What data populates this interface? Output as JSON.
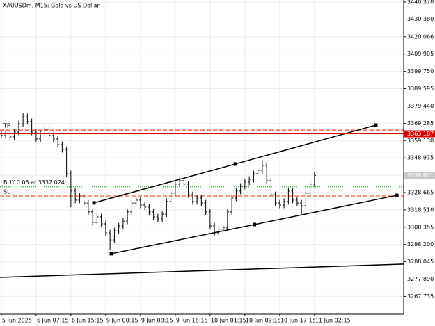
{
  "chart_data": {
    "type": "ohlc",
    "title": "XAUUSDm, M15:  Gold vs US Dollar",
    "open": [
      3363.0,
      3362.1,
      3363.3,
      3361.3,
      3364.1,
      3369.0,
      3373.1,
      3370.3,
      3364.1,
      3360.1,
      3363.3,
      3365.8,
      3362.1,
      3360.1,
      3356.8,
      3353.9,
      3339.7,
      3329.5,
      3324.2,
      3326.6,
      3322.5,
      3317.3,
      3311.1,
      3314.4,
      3310.3,
      3305.0,
      3300.9,
      3306.2,
      3309.1,
      3311.9,
      3317.3,
      3322.5,
      3324.2,
      3321.3,
      3320.1,
      3317.3,
      3314.4,
      3313.2,
      3316.0,
      3323.4,
      3328.3,
      3333.6,
      3335.6,
      3333.6,
      3327.4,
      3323.4,
      3325.4,
      3322.5,
      3317.3,
      3309.1,
      3305.0,
      3307.1,
      3307.9,
      3317.3,
      3325.4,
      3329.5,
      3332.3,
      3334.8,
      3336.4,
      3339.7,
      3341.7,
      3344.6,
      3335.6,
      3327.4,
      3322.5,
      3321.3,
      3323.4,
      3329.5,
      3324.2,
      3322.5,
      3320.9,
      3328.3,
      3333.6
    ],
    "high": [
      3364.8,
      3365.1,
      3365.1,
      3365.9,
      3370.8,
      3375.5,
      3374.9,
      3372.1,
      3365.9,
      3365.1,
      3367.6,
      3367.6,
      3363.9,
      3361.9,
      3358.6,
      3355.7,
      3341.5,
      3331.3,
      3328.4,
      3328.4,
      3324.3,
      3319.1,
      3316.2,
      3316.2,
      3312.1,
      3306.8,
      3308.0,
      3310.9,
      3313.7,
      3319.1,
      3324.3,
      3326.0,
      3326.0,
      3323.1,
      3321.9,
      3319.1,
      3316.2,
      3317.8,
      3325.2,
      3330.1,
      3335.4,
      3337.4,
      3337.4,
      3335.4,
      3329.2,
      3327.2,
      3327.2,
      3324.3,
      3319.1,
      3310.9,
      3308.9,
      3309.7,
      3319.1,
      3327.2,
      3331.3,
      3334.1,
      3336.6,
      3338.2,
      3341.5,
      3343.5,
      3347.5,
      3346.4,
      3337.4,
      3329.2,
      3324.3,
      3325.2,
      3331.3,
      3331.3,
      3326.0,
      3324.3,
      3330.1,
      3335.4,
      3340.5
    ],
    "low": [
      3360.3,
      3360.3,
      3359.5,
      3359.5,
      3362.3,
      3367.2,
      3368.5,
      3362.3,
      3358.3,
      3358.3,
      3361.5,
      3360.3,
      3358.3,
      3355.0,
      3352.1,
      3337.9,
      3320.0,
      3322.4,
      3322.4,
      3320.7,
      3315.5,
      3309.3,
      3309.3,
      3308.5,
      3303.2,
      3295.0,
      3299.1,
      3304.4,
      3307.3,
      3310.1,
      3315.5,
      3320.7,
      3319.5,
      3318.3,
      3315.5,
      3312.6,
      3311.4,
      3311.4,
      3314.2,
      3321.6,
      3326.5,
      3331.8,
      3331.8,
      3325.6,
      3321.6,
      3321.6,
      3320.7,
      3315.5,
      3307.3,
      3303.2,
      3303.2,
      3305.3,
      3306.1,
      3315.5,
      3323.6,
      3327.7,
      3330.5,
      3333.0,
      3334.6,
      3337.9,
      3339.9,
      3333.8,
      3325.6,
      3320.7,
      3319.5,
      3319.5,
      3321.6,
      3322.4,
      3320.7,
      3316.0,
      3319.1,
      3326.5,
      3331.8
    ],
    "close": [
      3362.1,
      3363.3,
      3361.3,
      3364.1,
      3369.0,
      3373.1,
      3370.3,
      3364.1,
      3360.1,
      3363.3,
      3365.8,
      3362.1,
      3360.1,
      3356.8,
      3353.9,
      3339.7,
      3329.5,
      3324.2,
      3326.6,
      3322.5,
      3317.3,
      3311.1,
      3314.4,
      3310.3,
      3305.0,
      3300.9,
      3306.2,
      3309.1,
      3311.9,
      3317.3,
      3322.5,
      3324.2,
      3321.3,
      3320.1,
      3317.3,
      3314.4,
      3313.2,
      3316.0,
      3323.4,
      3328.3,
      3333.6,
      3335.6,
      3333.6,
      3327.4,
      3323.4,
      3325.4,
      3322.5,
      3317.3,
      3309.1,
      3305.0,
      3307.1,
      3307.9,
      3317.3,
      3325.4,
      3329.5,
      3332.3,
      3334.8,
      3336.4,
      3339.7,
      3341.7,
      3344.6,
      3335.6,
      3327.4,
      3322.5,
      3321.3,
      3323.4,
      3329.5,
      3324.2,
      3322.5,
      3320.9,
      3328.3,
      3333.6,
      3338.7
    ],
    "color": "#000000",
    "xlim": [
      -0.3,
      92.5
    ],
    "xticks": [
      {
        "value": 0,
        "label": "5 Jun 2025"
      },
      {
        "value": 8,
        "label": "6 Jun 07:15"
      },
      {
        "value": 16,
        "label": "6 Jun 15:15"
      },
      {
        "value": 24,
        "label": "9 Jun 00:15"
      },
      {
        "value": 32,
        "label": "9 Jun 08:15"
      },
      {
        "value": 40,
        "label": "9 Jun 16:15"
      },
      {
        "value": 48,
        "label": "10 Jun 01:15"
      },
      {
        "value": 56,
        "label": "10 Jun 09:15"
      },
      {
        "value": 64,
        "label": "10 Jun 17:15"
      },
      {
        "value": 72,
        "label": "11 Jun 02:15"
      }
    ],
    "ylim": [
      3257.3,
      3441.6
    ],
    "yticks": [
      {
        "value": 3440.37,
        "label": "3440.370"
      },
      {
        "value": 3430.38,
        "label": "3430.380"
      },
      3420.066,
      3409.905,
      {
        "value": 3399.75,
        "label": "3399.750"
      },
      3389.595,
      {
        "value": 3379.44,
        "label": "3379.440"
      },
      3369.285,
      {
        "value": 3359.13,
        "label": "3359.130"
      },
      3348.975,
      {
        "value": 3338.82,
        "label": "3338.820"
      },
      3328.665,
      {
        "value": 3318.51,
        "label": "3318.510"
      },
      3308.355,
      {
        "value": 3298.2,
        "label": "3298.200"
      },
      3288.045,
      {
        "value": 3277.89,
        "label": "3277.890"
      },
      3267.735
    ],
    "grid": true,
    "levels": [
      {
        "name": "TP",
        "value": 3365.3,
        "color": "#ff0000",
        "dash": "dashed"
      },
      {
        "name": "BUY 0.05 at 3332.024",
        "value": 3332.024,
        "color": "#00a000",
        "dash": "dotted"
      },
      {
        "name": "SL",
        "value": 3326.6,
        "color": "#ff3000",
        "dash": "dashed"
      }
    ],
    "price_labels": [
      {
        "value": 3363.107,
        "color": "#e00000",
        "line": true
      },
      {
        "value": 3338.671,
        "color": "#c8c8c8",
        "line": false
      }
    ],
    "trendlines": [
      {
        "x": [
          21.3,
          53.8,
          86.1
        ],
        "y": [
          3322.6,
          3345.4,
          3368.2
        ]
      },
      {
        "x": [
          25.3,
          58.2,
          90.9
        ],
        "y": [
          3292.8,
          3309.9,
          3327.0
        ]
      },
      {
        "x": [
          -0.3,
          92.5
        ],
        "y": [
          3278.9,
          3286.7
        ]
      }
    ]
  }
}
